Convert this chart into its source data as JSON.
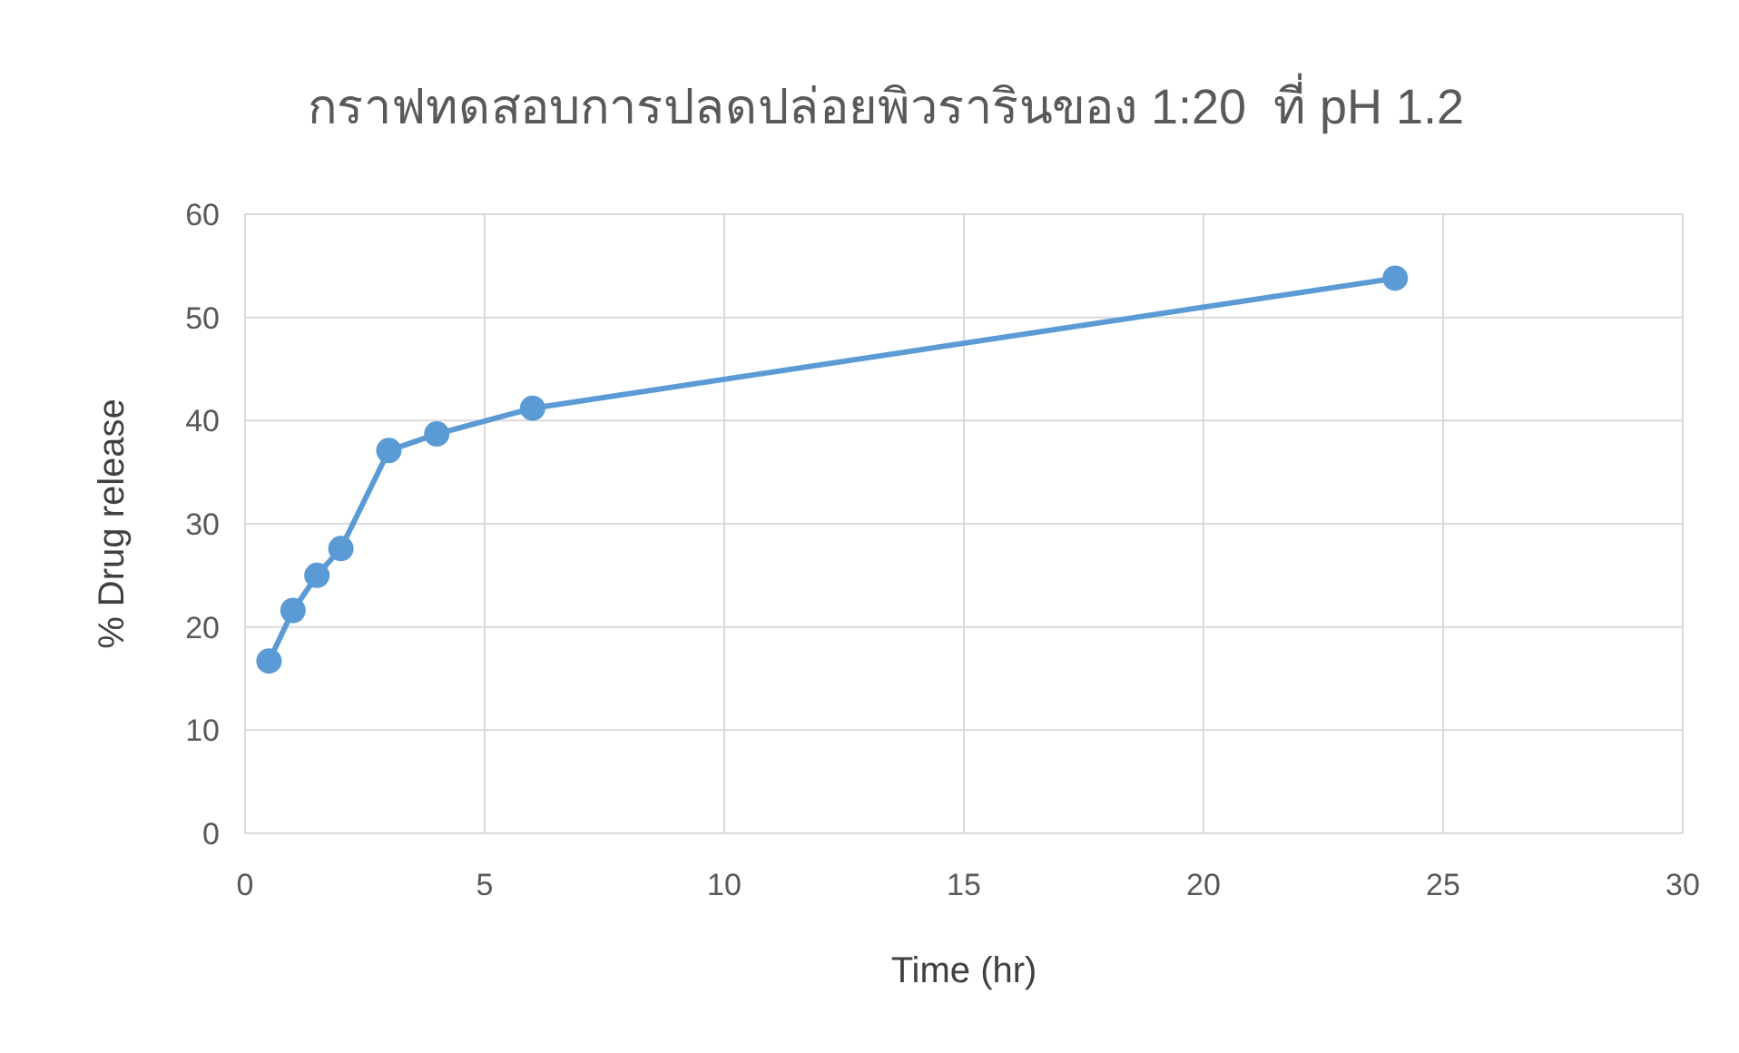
{
  "chart_data": {
    "type": "line",
    "title": "กราฟทดสอบการปลดปล่อยพิวรารินของ 1:20  ที่ pH 1.2",
    "xlabel": "Time (hr)",
    "ylabel": "% Drug release",
    "x": [
      0.5,
      1,
      1.5,
      2,
      3,
      4,
      6,
      24
    ],
    "series": [
      {
        "color": "#5b9bd5",
        "values": [
          16.7,
          21.6,
          25.0,
          27.6,
          37.1,
          38.7,
          41.2,
          53.8
        ]
      }
    ],
    "xlim": [
      0,
      30
    ],
    "xticks": [
      0,
      5,
      10,
      15,
      20,
      25,
      30
    ],
    "ylim": [
      0,
      60
    ],
    "yticks": [
      0,
      10,
      20,
      30,
      40,
      50,
      60
    ],
    "grid": true,
    "marker": "circle",
    "line_style": "solid"
  }
}
